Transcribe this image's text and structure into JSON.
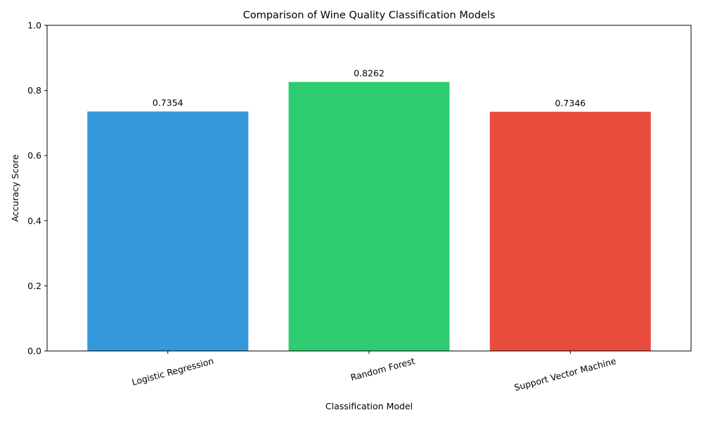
{
  "chart_data": {
    "type": "bar",
    "title": "Comparison of Wine Quality Classification Models",
    "xlabel": "Classification Model",
    "ylabel": "Accuracy Score",
    "categories": [
      "Logistic Regression",
      "Random Forest",
      "Support Vector Machine"
    ],
    "values": [
      0.7354,
      0.8262,
      0.7346
    ],
    "value_labels": [
      "0.7354",
      "0.8262",
      "0.7346"
    ],
    "colors": [
      "#3498db",
      "#2ecc71",
      "#e74c3c"
    ],
    "ylim": [
      0,
      1
    ],
    "yticks": [
      0.0,
      0.2,
      0.4,
      0.6,
      0.8,
      1.0
    ],
    "ytick_labels": [
      "0.0",
      "0.2",
      "0.4",
      "0.6",
      "0.8",
      "1.0"
    ],
    "grid": false,
    "legend": "none"
  }
}
